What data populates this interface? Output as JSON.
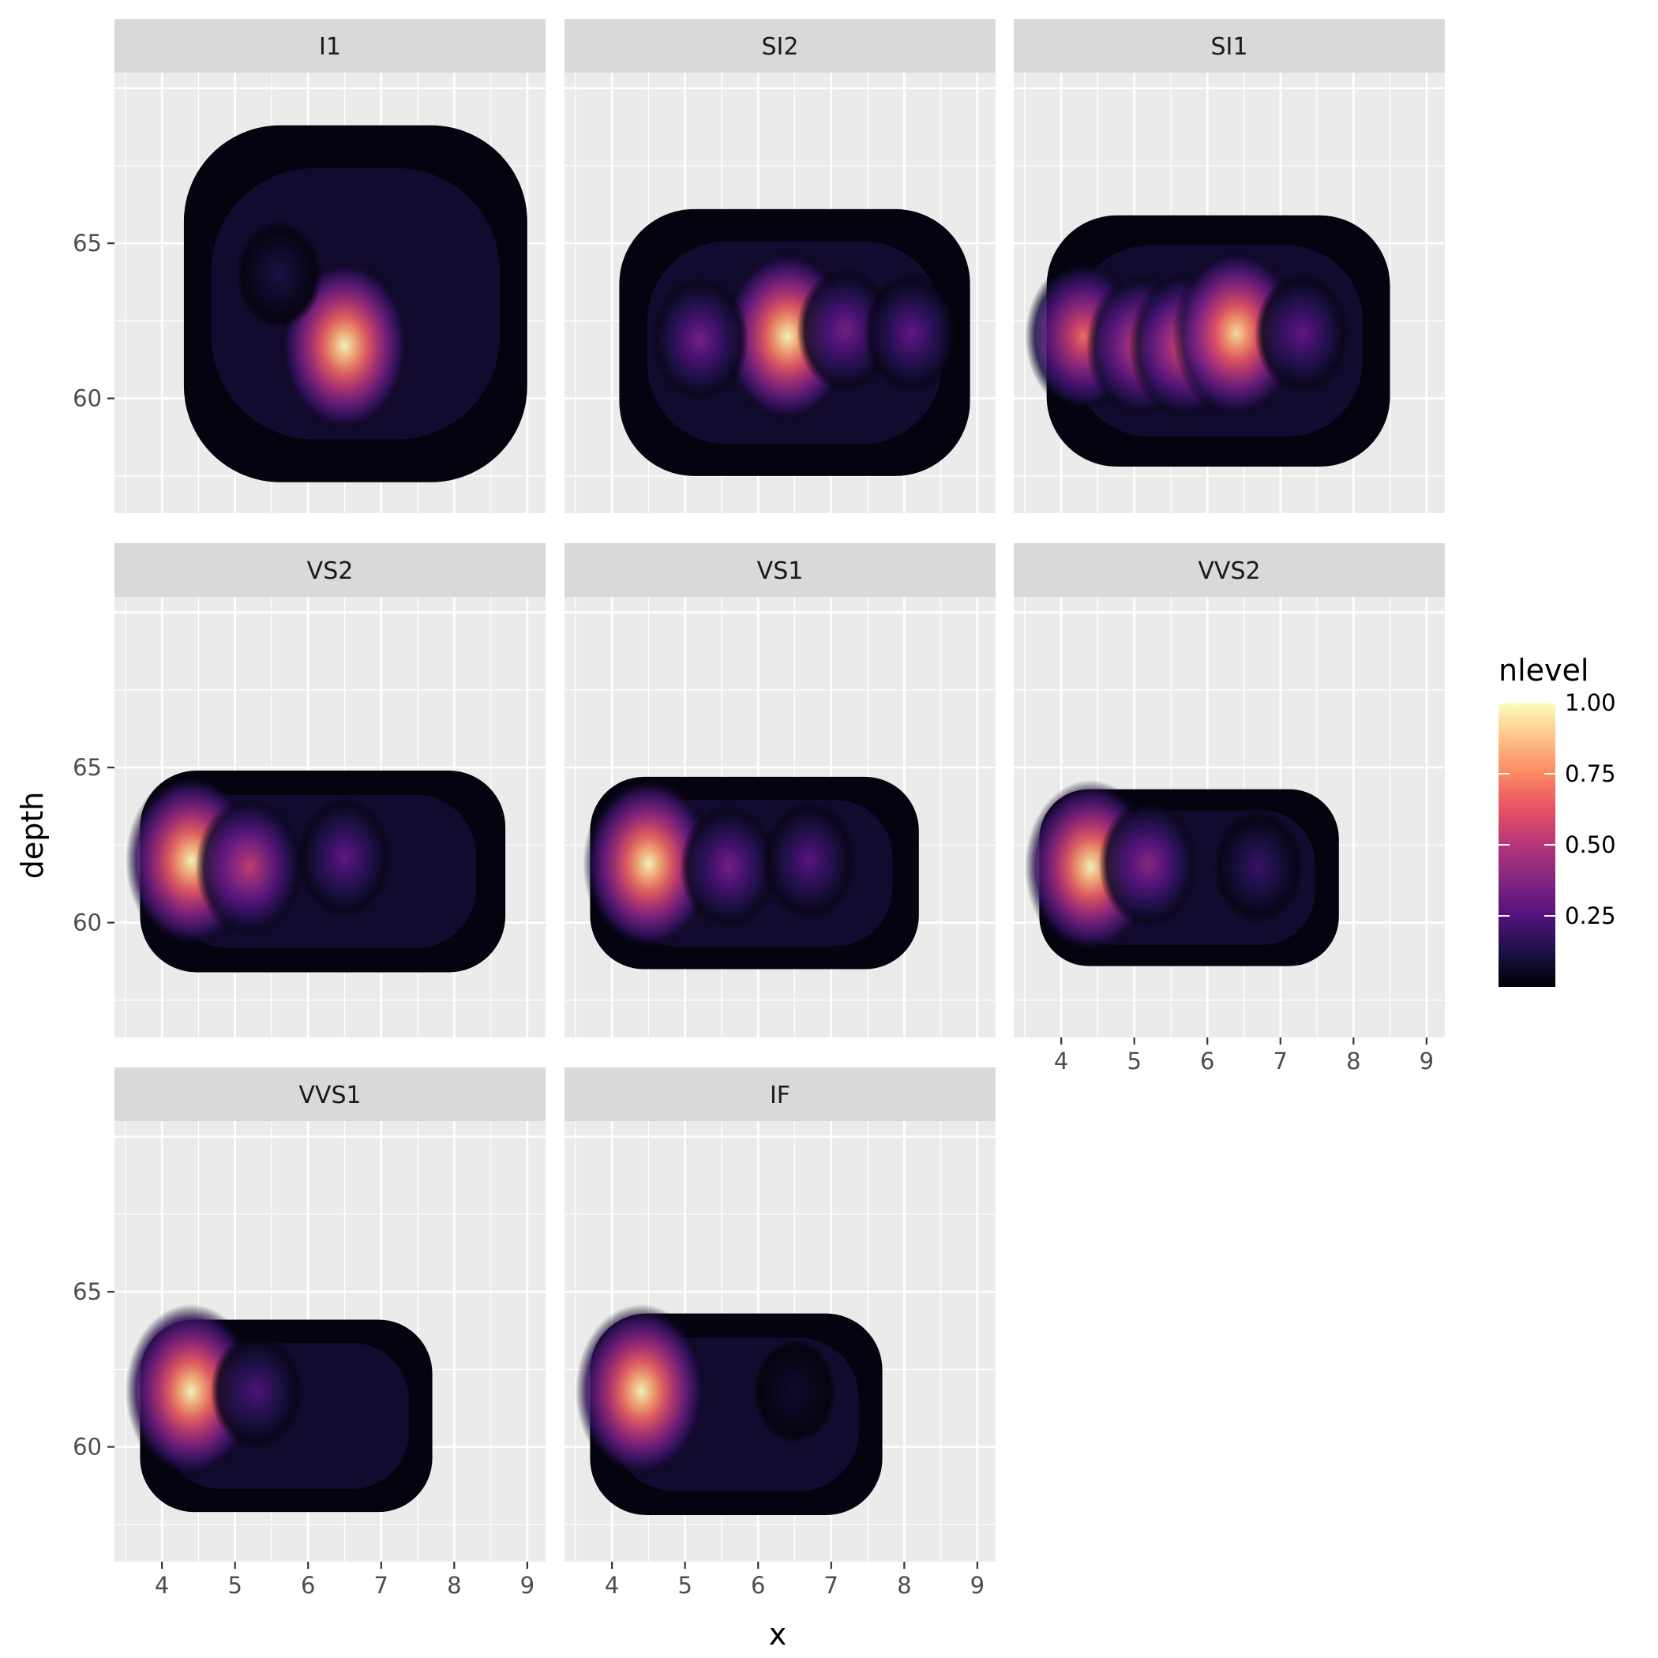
{
  "chart_data": {
    "type": "heatmap",
    "subtype": "faceted 2D density (filled contours)",
    "xlabel": "x",
    "ylabel": "depth",
    "xlim": [
      3.35,
      9.25
    ],
    "ylim": [
      56.3,
      70.5
    ],
    "x_ticks": [
      4,
      5,
      6,
      7,
      8,
      9
    ],
    "y_ticks": [
      60,
      65
    ],
    "x_tick_labels": [
      "4",
      "5",
      "6",
      "7",
      "8",
      "9"
    ],
    "y_tick_labels": [
      "60",
      "65"
    ],
    "grid": true,
    "legend": {
      "title": "nlevel",
      "position": "right",
      "type": "colorbar",
      "range": [
        0.0,
        1.0
      ],
      "ticks": [
        0.25,
        0.5,
        0.75,
        1.0
      ],
      "tick_labels": [
        "0.25",
        "0.50",
        "0.75",
        "1.00"
      ],
      "palette": [
        "#000004",
        "#1d1147",
        "#51127c",
        "#822681",
        "#b63679",
        "#e65164",
        "#fb8861",
        "#fec287",
        "#fcfdbf"
      ]
    },
    "facets": [
      {
        "label": "I1",
        "extent": {
          "x": [
            4.3,
            9.0
          ],
          "y": [
            57.3,
            68.8
          ]
        },
        "peaks": [
          {
            "x": 6.5,
            "y": 61.7,
            "level": 1.0
          },
          {
            "x": 5.6,
            "y": 64.0,
            "level": 0.12
          }
        ]
      },
      {
        "label": "SI2",
        "extent": {
          "x": [
            4.1,
            8.9
          ],
          "y": [
            57.5,
            66.1
          ]
        },
        "peaks": [
          {
            "x": 6.4,
            "y": 62.0,
            "level": 1.0
          },
          {
            "x": 5.2,
            "y": 61.9,
            "level": 0.35
          },
          {
            "x": 7.2,
            "y": 62.2,
            "level": 0.35
          },
          {
            "x": 8.1,
            "y": 62.1,
            "level": 0.3
          }
        ]
      },
      {
        "label": "SI1",
        "extent": {
          "x": [
            3.8,
            8.5
          ],
          "y": [
            57.8,
            65.9
          ]
        },
        "peaks": [
          {
            "x": 4.3,
            "y": 62.0,
            "level": 0.7
          },
          {
            "x": 5.1,
            "y": 61.7,
            "level": 0.6
          },
          {
            "x": 5.7,
            "y": 61.7,
            "level": 0.65
          },
          {
            "x": 6.4,
            "y": 62.1,
            "level": 0.95
          },
          {
            "x": 7.3,
            "y": 62.1,
            "level": 0.3
          }
        ]
      },
      {
        "label": "VS2",
        "extent": {
          "x": [
            3.7,
            8.7
          ],
          "y": [
            58.4,
            64.9
          ]
        },
        "peaks": [
          {
            "x": 4.4,
            "y": 62.0,
            "level": 1.0
          },
          {
            "x": 5.2,
            "y": 61.8,
            "level": 0.55
          },
          {
            "x": 6.5,
            "y": 62.1,
            "level": 0.3
          }
        ]
      },
      {
        "label": "VS1",
        "extent": {
          "x": [
            3.7,
            8.2
          ],
          "y": [
            58.5,
            64.7
          ]
        },
        "peaks": [
          {
            "x": 4.5,
            "y": 61.9,
            "level": 1.0
          },
          {
            "x": 5.6,
            "y": 61.8,
            "level": 0.35
          },
          {
            "x": 6.7,
            "y": 62.0,
            "level": 0.28
          }
        ]
      },
      {
        "label": "VVS2",
        "extent": {
          "x": [
            3.7,
            7.8
          ],
          "y": [
            58.6,
            64.3
          ]
        },
        "peaks": [
          {
            "x": 4.4,
            "y": 61.8,
            "level": 1.0
          },
          {
            "x": 5.2,
            "y": 61.9,
            "level": 0.4
          },
          {
            "x": 6.7,
            "y": 61.8,
            "level": 0.2
          }
        ]
      },
      {
        "label": "VVS1",
        "extent": {
          "x": [
            3.7,
            7.7
          ],
          "y": [
            57.9,
            64.1
          ]
        },
        "peaks": [
          {
            "x": 4.4,
            "y": 61.8,
            "level": 1.0
          },
          {
            "x": 5.3,
            "y": 61.8,
            "level": 0.25
          }
        ]
      },
      {
        "label": "IF",
        "extent": {
          "x": [
            3.7,
            7.7
          ],
          "y": [
            57.8,
            64.3
          ]
        },
        "peaks": [
          {
            "x": 4.4,
            "y": 61.8,
            "level": 1.0
          },
          {
            "x": 6.5,
            "y": 61.8,
            "level": 0.08
          }
        ]
      }
    ]
  }
}
